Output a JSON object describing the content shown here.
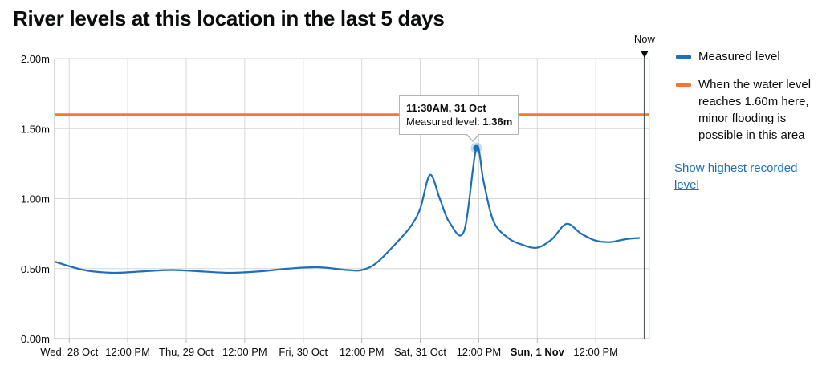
{
  "title": "River levels at this location in the last 5 days",
  "now_label": "Now",
  "legend": {
    "measured_label": "Measured level",
    "threshold_label": "When the water level reaches 1.60m here, minor flooding is possible in this area",
    "link_label": "Show highest recorded level"
  },
  "tooltip": {
    "time": "11:30AM, 31 Oct",
    "label": "Measured level: ",
    "value": "1.36m"
  },
  "colors": {
    "measured": "#1d70b8",
    "threshold": "#f47738",
    "now_line": "#505a5f",
    "link": "#1d70b8"
  },
  "chart_data": {
    "type": "line",
    "title": "River levels at this location in the last 5 days",
    "ylim": [
      0,
      2.0
    ],
    "xlim": [
      "2020-10-27T21:00",
      "2020-11-01T23:00"
    ],
    "y_ticks": [
      {
        "value": 0.0,
        "label": "0.00m"
      },
      {
        "value": 0.5,
        "label": "0.50m"
      },
      {
        "value": 1.0,
        "label": "1.00m"
      },
      {
        "value": 1.5,
        "label": "1.50m"
      },
      {
        "value": 2.0,
        "label": "2.00m"
      }
    ],
    "x_ticks": [
      {
        "t": "2020-10-28T00:00",
        "label": "Wed, 28 Oct",
        "bold": false
      },
      {
        "t": "2020-10-28T12:00",
        "label": "12:00 PM",
        "bold": false
      },
      {
        "t": "2020-10-29T00:00",
        "label": "Thu, 29 Oct",
        "bold": false
      },
      {
        "t": "2020-10-29T12:00",
        "label": "12:00 PM",
        "bold": false
      },
      {
        "t": "2020-10-30T00:00",
        "label": "Fri, 30 Oct",
        "bold": false
      },
      {
        "t": "2020-10-30T12:00",
        "label": "12:00 PM",
        "bold": false
      },
      {
        "t": "2020-10-31T00:00",
        "label": "Sat, 31 Oct",
        "bold": false
      },
      {
        "t": "2020-10-31T12:00",
        "label": "12:00 PM",
        "bold": false
      },
      {
        "t": "2020-11-01T00:00",
        "label": "Sun, 1 Nov",
        "bold": true
      },
      {
        "t": "2020-11-01T12:00",
        "label": "12:00 PM",
        "bold": false
      }
    ],
    "now": "2020-11-01T22:00",
    "threshold": 1.6,
    "highlight": {
      "t": "2020-10-31T11:30",
      "y": 1.36
    },
    "series": [
      {
        "x": [
          "2020-10-27T21:00",
          "2020-10-28T03:00",
          "2020-10-28T09:00",
          "2020-10-28T15:00",
          "2020-10-28T21:00",
          "2020-10-29T03:00",
          "2020-10-29T09:00",
          "2020-10-29T15:00",
          "2020-10-29T21:00",
          "2020-10-30T03:00",
          "2020-10-30T09:00",
          "2020-10-30T12:00",
          "2020-10-30T15:00",
          "2020-10-30T19:00",
          "2020-10-30T22:00",
          "2020-10-31T00:00",
          "2020-10-31T02:00",
          "2020-10-31T04:00",
          "2020-10-31T06:00",
          "2020-10-31T09:00",
          "2020-10-31T11:30",
          "2020-10-31T13:00",
          "2020-10-31T15:00",
          "2020-10-31T18:00",
          "2020-10-31T21:00",
          "2020-11-01T00:00",
          "2020-11-01T03:00",
          "2020-11-01T06:00",
          "2020-11-01T09:00",
          "2020-11-01T12:00",
          "2020-11-01T15:00",
          "2020-11-01T18:00",
          "2020-11-01T21:00"
        ],
        "values": [
          0.55,
          0.49,
          0.47,
          0.48,
          0.49,
          0.48,
          0.47,
          0.48,
          0.5,
          0.51,
          0.49,
          0.49,
          0.54,
          0.68,
          0.8,
          0.93,
          1.17,
          1.0,
          0.83,
          0.77,
          1.36,
          1.12,
          0.84,
          0.72,
          0.67,
          0.65,
          0.71,
          0.82,
          0.75,
          0.7,
          0.69,
          0.71,
          0.72
        ]
      }
    ]
  }
}
